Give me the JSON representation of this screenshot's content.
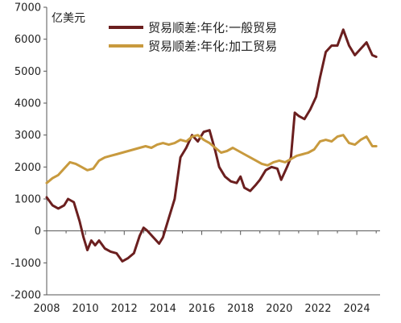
{
  "chart_data": {
    "type": "line",
    "unit_label": "亿美元",
    "ylim": [
      -2000,
      7000
    ],
    "yticks": [
      -2000,
      -1000,
      0,
      1000,
      2000,
      3000,
      4000,
      5000,
      6000,
      7000
    ],
    "xlim": [
      2008,
      2025.2
    ],
    "xticks": [
      2008,
      2010,
      2012,
      2014,
      2016,
      2018,
      2020,
      2022,
      2024
    ],
    "legend_position": "top",
    "series": [
      {
        "name": "贸易顺差:年化:一般贸易",
        "color": "#6b1f1f",
        "x": [
          2008.0,
          2008.3,
          2008.6,
          2008.9,
          2009.1,
          2009.4,
          2009.7,
          2009.9,
          2010.1,
          2010.3,
          2010.5,
          2010.7,
          2011.0,
          2011.3,
          2011.6,
          2011.9,
          2012.2,
          2012.5,
          2012.8,
          2013.0,
          2013.2,
          2013.5,
          2013.8,
          2014.0,
          2014.3,
          2014.6,
          2014.9,
          2015.2,
          2015.5,
          2015.8,
          2016.1,
          2016.4,
          2016.7,
          2016.9,
          2017.2,
          2017.5,
          2017.8,
          2018.0,
          2018.2,
          2018.5,
          2018.8,
          2019.0,
          2019.3,
          2019.6,
          2019.9,
          2020.1,
          2020.4,
          2020.6,
          2020.8,
          2021.0,
          2021.3,
          2021.6,
          2021.9,
          2022.1,
          2022.4,
          2022.7,
          2023.0,
          2023.3,
          2023.6,
          2023.9,
          2024.2,
          2024.5,
          2024.8,
          2025.0
        ],
        "y": [
          1050,
          800,
          700,
          800,
          1000,
          900,
          300,
          -200,
          -600,
          -300,
          -450,
          -300,
          -550,
          -650,
          -700,
          -950,
          -850,
          -700,
          -150,
          100,
          0,
          -200,
          -400,
          -200,
          400,
          1000,
          2300,
          2600,
          3000,
          2800,
          3100,
          3150,
          2500,
          2000,
          1700,
          1550,
          1500,
          1700,
          1350,
          1250,
          1450,
          1600,
          1900,
          2000,
          1950,
          1600,
          2000,
          2300,
          3700,
          3600,
          3500,
          3800,
          4200,
          4800,
          5600,
          5800,
          5800,
          6300,
          5800,
          5500,
          5700,
          5900,
          5500,
          5450
        ]
      },
      {
        "name": "贸易顺差:年化:加工贸易",
        "color": "#c89a3e",
        "x": [
          2008.0,
          2008.3,
          2008.6,
          2008.9,
          2009.2,
          2009.5,
          2009.8,
          2010.1,
          2010.4,
          2010.7,
          2011.0,
          2011.3,
          2011.6,
          2011.9,
          2012.2,
          2012.5,
          2012.8,
          2013.1,
          2013.4,
          2013.7,
          2014.0,
          2014.3,
          2014.6,
          2014.9,
          2015.2,
          2015.5,
          2015.8,
          2016.1,
          2016.4,
          2016.7,
          2017.0,
          2017.3,
          2017.6,
          2017.9,
          2018.2,
          2018.5,
          2018.8,
          2019.1,
          2019.4,
          2019.7,
          2020.0,
          2020.3,
          2020.6,
          2020.9,
          2021.2,
          2021.5,
          2021.8,
          2022.1,
          2022.4,
          2022.7,
          2023.0,
          2023.3,
          2023.6,
          2023.9,
          2024.2,
          2024.5,
          2024.8,
          2025.0
        ],
        "y": [
          1500,
          1650,
          1750,
          1950,
          2150,
          2100,
          2000,
          1900,
          1950,
          2200,
          2300,
          2350,
          2400,
          2450,
          2500,
          2550,
          2600,
          2650,
          2600,
          2700,
          2750,
          2700,
          2750,
          2850,
          2800,
          2950,
          3000,
          2850,
          2750,
          2600,
          2450,
          2500,
          2600,
          2500,
          2400,
          2300,
          2200,
          2100,
          2050,
          2150,
          2200,
          2150,
          2250,
          2350,
          2400,
          2450,
          2550,
          2800,
          2850,
          2800,
          2950,
          3000,
          2750,
          2700,
          2850,
          2950,
          2650,
          2650
        ]
      }
    ]
  }
}
